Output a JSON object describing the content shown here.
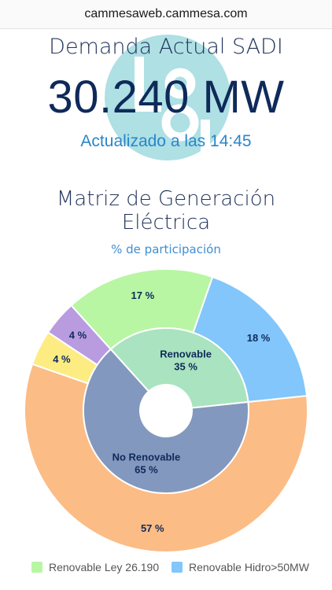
{
  "url": "cammesaweb.cammesa.com",
  "header": {
    "title": "Demanda Actual SADI",
    "value": "30.240 MW",
    "updated": "Actualizado a las 14:45"
  },
  "matrix": {
    "title_line1": "Matriz de Generación",
    "title_line2": "Eléctrica",
    "subtitle": "% de participación"
  },
  "chart_data": {
    "type": "pie",
    "outer_ring": [
      {
        "name": "Renovable Ley 26.190",
        "value": 17,
        "label": "17 %",
        "color": "#b8f6a4"
      },
      {
        "name": "Renovable Hidro>50MW",
        "value": 18,
        "label": "18 %",
        "color": "#82c6fb"
      },
      {
        "value": 57,
        "label": "57 %",
        "color": "#fbbc85"
      },
      {
        "value": 4,
        "label": "4 %",
        "color": "#fcec82"
      },
      {
        "value": 4,
        "label": "4 %",
        "color": "#b99be0"
      }
    ],
    "inner_ring": [
      {
        "name": "Renovable",
        "value": 35,
        "label": "35 %",
        "color": "#a9e3bf"
      },
      {
        "name": "No Renovable",
        "value": 65,
        "label": "65 %",
        "color": "#8298be"
      }
    ]
  },
  "legend": [
    {
      "label": "Renovable Ley 26.190",
      "color": "#b8f6a4"
    },
    {
      "label": "Renovable Hidro>50MW",
      "color": "#82c6fb"
    }
  ],
  "colors": {
    "title": "#23355c",
    "value": "#0f2a5a",
    "updated": "#2a86c8",
    "logo": "#aee0e4"
  }
}
